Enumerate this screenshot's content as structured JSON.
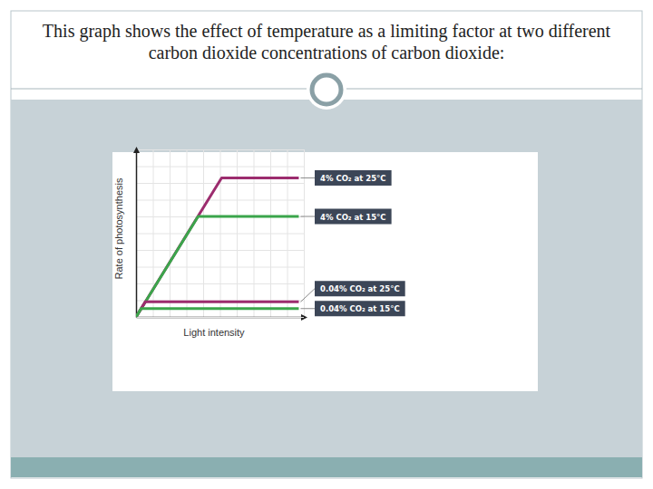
{
  "chart_data": {
    "type": "line",
    "title": "This graph shows the effect of temperature as a limiting factor at two different carbon dioxide concentrations of carbon dioxide:",
    "xlabel": "Light intensity",
    "ylabel": "Rate of photosynthesis",
    "xlim": [
      0,
      10
    ],
    "ylim": [
      0,
      10
    ],
    "xticks": [
      0,
      1,
      2,
      3,
      4,
      5,
      6,
      7,
      8,
      9,
      10
    ],
    "yticks": [
      0,
      1,
      2,
      3,
      4,
      5,
      6,
      7,
      8,
      9,
      10
    ],
    "grid": true,
    "tick_labels": false,
    "series": [
      {
        "name": "4% CO₂ at 25°C",
        "color": "#9c2c6e",
        "x": [
          0,
          5.1,
          9.7
        ],
        "values": [
          0,
          8.3,
          8.3
        ]
      },
      {
        "name": "4% CO₂ at 15°C",
        "color": "#3ba54b",
        "x": [
          0,
          3.7,
          9.7
        ],
        "values": [
          0,
          6,
          6
        ]
      },
      {
        "name": "0.04% CO₂ at 25°C",
        "color": "#9c2c6e",
        "x": [
          0,
          0.55,
          9.7
        ],
        "values": [
          0,
          0.9,
          0.9
        ]
      },
      {
        "name": "0.04% CO₂ at 15°C",
        "color": "#3ba54b",
        "x": [
          0,
          0.3,
          9.7
        ],
        "values": [
          0,
          0.5,
          0.5
        ]
      }
    ]
  }
}
